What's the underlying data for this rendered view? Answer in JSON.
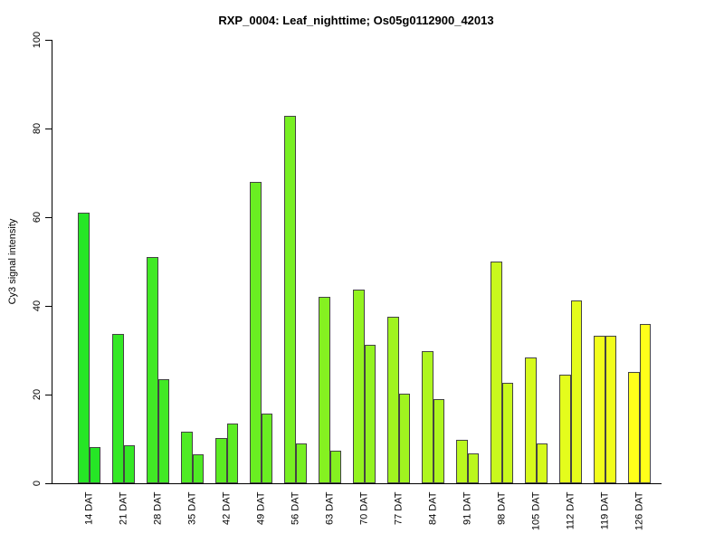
{
  "chart_data": {
    "type": "bar",
    "title": "RXP_0004: Leaf_nighttime; Os05g0112900_42013",
    "ylabel": "Cy3 signal intensity",
    "xlabel": "",
    "ylim": [
      0,
      100
    ],
    "yticks": [
      0,
      20,
      40,
      60,
      80,
      100
    ],
    "grid": false,
    "legend": "none",
    "categories": [
      "14 DAT",
      "21 DAT",
      "28 DAT",
      "35 DAT",
      "42 DAT",
      "49 DAT",
      "56 DAT",
      "63 DAT",
      "70 DAT",
      "77 DAT",
      "84 DAT",
      "91 DAT",
      "98 DAT",
      "105 DAT",
      "112 DAT",
      "119 DAT",
      "126 DAT"
    ],
    "series": [
      {
        "name": "left-bar",
        "values": [
          61.0,
          33.7,
          51.0,
          11.6,
          10.3,
          68.0,
          82.9,
          42.0,
          43.6,
          37.6,
          29.8,
          9.7,
          50.1,
          28.3,
          24.5,
          33.2,
          25.2
        ]
      },
      {
        "name": "right-bar",
        "values": [
          8.2,
          8.6,
          23.4,
          6.6,
          13.5,
          15.8,
          8.9,
          7.4,
          31.2,
          20.3,
          18.9,
          6.7,
          22.7,
          8.9,
          41.3,
          33.2,
          35.9
        ]
      }
    ],
    "bar_colors": [
      "#26E626",
      "#34E825",
      "#41E925",
      "#4FEB24",
      "#5CEC23",
      "#6AEE22",
      "#77EF22",
      "#85F121",
      "#93F320",
      "#A0F41F",
      "#AEF61F",
      "#BBF71E",
      "#C9F91D",
      "#D6FA1C",
      "#E4FC1C",
      "#F1FD1B",
      "#FFFF1A"
    ],
    "border_color": "#444444",
    "axis_color": "#000000",
    "background_color": "#FFFFFF"
  }
}
